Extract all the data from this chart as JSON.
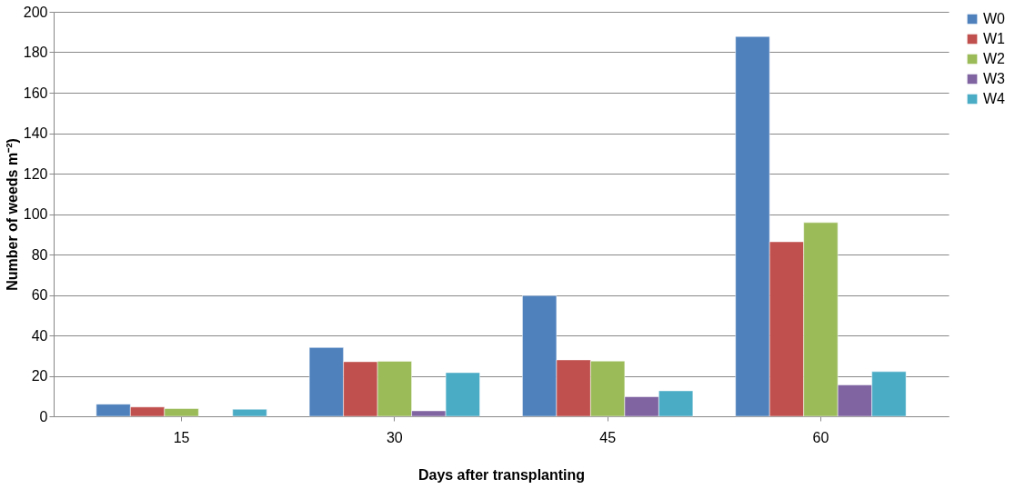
{
  "chart_data": {
    "type": "bar",
    "xlabel": "Days after transplanting",
    "ylabel": "Number of weeds m⁻²)",
    "categories": [
      "15",
      "30",
      "45",
      "60"
    ],
    "series": [
      {
        "name": "W0",
        "color": "#4f81bd",
        "values": [
          6,
          34,
          59.7,
          187.8
        ]
      },
      {
        "name": "W1",
        "color": "#c0504d",
        "values": [
          4.6,
          27,
          27.9,
          86.3
        ]
      },
      {
        "name": "W2",
        "color": "#9bbb59",
        "values": [
          3.8,
          27.2,
          27.3,
          95.8
        ]
      },
      {
        "name": "W3",
        "color": "#8064a2",
        "values": [
          null,
          2.7,
          9.7,
          15.5
        ]
      },
      {
        "name": "W4",
        "color": "#4bacc6",
        "values": [
          3.5,
          21.6,
          12.6,
          22.1
        ]
      }
    ],
    "ylim": [
      0,
      200
    ],
    "yticks": [
      0,
      20,
      40,
      60,
      80,
      100,
      120,
      140,
      160,
      180,
      200
    ],
    "grid": "y",
    "legend": "right"
  }
}
